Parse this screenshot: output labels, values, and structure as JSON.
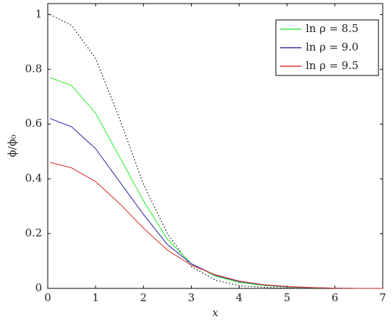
{
  "chart_data": {
    "type": "line",
    "x_label": "x",
    "y_label": "ϕ/ϕ₀",
    "x": [
      0.05,
      0.5,
      1,
      1.5,
      2,
      2.5,
      3,
      3.5,
      4,
      4.5,
      5,
      5.5,
      6,
      6.5,
      7
    ],
    "series": [
      {
        "color": "#000000",
        "style": "dotted",
        "values": [
          1,
          0.96,
          0.84,
          0.62,
          0.38,
          0.2,
          0.08,
          0.03,
          0.01,
          0.004,
          0.001,
          0,
          0,
          0,
          0
        ]
      },
      {
        "name": "ln ρ = 8.5",
        "color": "#33ee33",
        "style": "solid",
        "values": [
          0.77,
          0.74,
          0.64,
          0.48,
          0.32,
          0.18,
          0.09,
          0.045,
          0.022,
          0.011,
          0.005,
          0.002,
          0.001,
          0,
          0
        ]
      },
      {
        "name": "ln ρ = 9.0",
        "color": "#3333aa",
        "style": "solid",
        "values": [
          0.62,
          0.59,
          0.51,
          0.39,
          0.27,
          0.16,
          0.09,
          0.048,
          0.025,
          0.013,
          0.006,
          0.003,
          0.001,
          0,
          0
        ]
      },
      {
        "name": "ln ρ = 9.5",
        "color": "#dd3333",
        "style": "solid",
        "values": [
          0.46,
          0.44,
          0.39,
          0.31,
          0.22,
          0.14,
          0.085,
          0.05,
          0.027,
          0.014,
          0.007,
          0.003,
          0.001,
          0,
          0
        ]
      }
    ],
    "xlim": [
      0,
      7
    ],
    "xticks": [
      0,
      1,
      2,
      3,
      4,
      5,
      6,
      7
    ],
    "ylim": [
      0,
      1.04
    ],
    "yticks": [
      0,
      0.2,
      0.4,
      0.6,
      0.8,
      1
    ],
    "legend": "upper right"
  }
}
